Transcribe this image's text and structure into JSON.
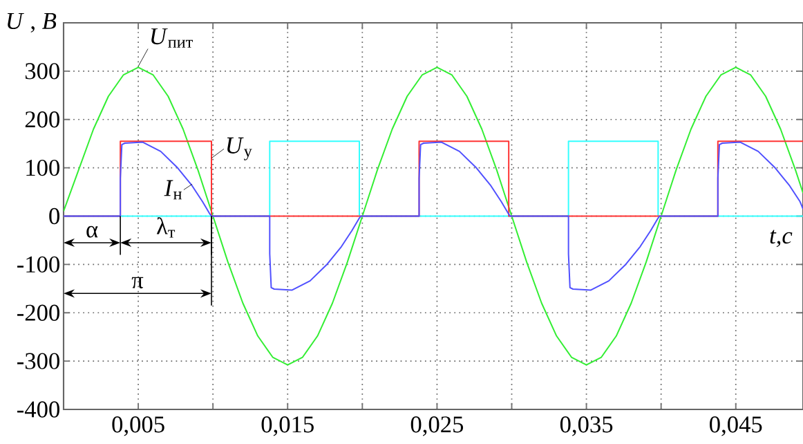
{
  "chart_data": {
    "type": "line",
    "xlabel": "t,c",
    "ylabel": "*U* , *B*",
    "xlim": [
      0,
      0.0495
    ],
    "ylim": [
      -400,
      400
    ],
    "xticks": [
      {
        "value": 0.005,
        "label": "0,005"
      },
      {
        "value": 0.01,
        "label": null
      },
      {
        "value": 0.015,
        "label": "0,015"
      },
      {
        "value": 0.02,
        "label": null
      },
      {
        "value": 0.025,
        "label": "0,025"
      },
      {
        "value": 0.03,
        "label": null
      },
      {
        "value": 0.035,
        "label": "0,035"
      },
      {
        "value": 0.04,
        "label": null
      },
      {
        "value": 0.045,
        "label": "0,045"
      }
    ],
    "yticks": [
      -400,
      -300,
      -200,
      -100,
      0,
      100,
      200,
      300
    ],
    "grid": true,
    "series": [
      {
        "color": "#33ee33",
        "x": [
          0,
          0.001,
          0.002,
          0.003,
          0.004,
          0.005,
          0.006,
          0.007,
          0.008,
          0.009,
          0.01,
          0.011,
          0.012,
          0.013,
          0.014,
          0.015,
          0.016,
          0.017,
          0.018,
          0.019,
          0.02,
          0.021,
          0.022,
          0.023,
          0.024,
          0.025,
          0.026,
          0.027,
          0.028,
          0.029,
          0.03,
          0.031,
          0.032,
          0.033,
          0.034,
          0.035,
          0.036,
          0.037,
          0.038,
          0.039,
          0.04,
          0.041,
          0.042,
          0.043,
          0.044,
          0.045,
          0.046,
          0.047,
          0.048,
          0.049,
          0.0495
        ],
        "values": [
          10,
          95,
          180,
          248,
          292,
          308,
          292,
          248,
          180,
          95,
          0,
          -95,
          -180,
          -248,
          -292,
          -308,
          -292,
          -248,
          -180,
          -95,
          0,
          95,
          180,
          248,
          292,
          308,
          292,
          248,
          180,
          95,
          0,
          -95,
          -180,
          -248,
          -292,
          -308,
          -292,
          -248,
          -180,
          -95,
          0,
          95,
          180,
          248,
          292,
          308,
          292,
          248,
          180,
          95,
          48
        ]
      },
      {
        "color": "#33ffff",
        "x": [
          0,
          0.0138,
          0.0138,
          0.0198,
          0.0198,
          0.0338,
          0.0338,
          0.0398,
          0.0398,
          0.0495
        ],
        "values": [
          0,
          0,
          155,
          155,
          0,
          0,
          155,
          155,
          0,
          0
        ]
      },
      {
        "color": "#ff3333",
        "x": [
          0,
          0.0038,
          0.0038,
          0.0099,
          0.0099,
          0.0238,
          0.0238,
          0.0298,
          0.0298,
          0.0438,
          0.0438,
          0.0495
        ],
        "values": [
          0,
          0,
          155,
          155,
          0,
          0,
          155,
          155,
          0,
          0,
          155,
          155
        ]
      },
      {
        "color": "#5050ff",
        "x": [
          0,
          0.0038,
          0.0038,
          0.0039,
          0.0041,
          0.0053,
          0.0065,
          0.0076,
          0.0086,
          0.0093,
          0.0098,
          0.0099,
          0.0138,
          0.0138,
          0.0139,
          0.0141,
          0.0153,
          0.0165,
          0.0176,
          0.0186,
          0.0193,
          0.0198,
          0.0199,
          0.0238,
          0.0238,
          0.0239,
          0.0241,
          0.0253,
          0.0265,
          0.0276,
          0.0286,
          0.0293,
          0.0298,
          0.0299,
          0.0338,
          0.0338,
          0.0339,
          0.0341,
          0.0353,
          0.0365,
          0.0376,
          0.0386,
          0.0393,
          0.0398,
          0.0399,
          0.0438,
          0.0438,
          0.0439,
          0.0441,
          0.0453,
          0.0465,
          0.0476,
          0.0486,
          0.0493,
          0.0495
        ],
        "values": [
          0,
          0,
          78,
          148,
          151,
          153,
          134,
          101,
          63,
          30,
          4,
          0,
          0,
          -78,
          -148,
          -151,
          -153,
          -134,
          -101,
          -63,
          -30,
          -4,
          0,
          0,
          78,
          148,
          151,
          153,
          134,
          101,
          63,
          30,
          4,
          0,
          0,
          -78,
          -148,
          -151,
          -153,
          -134,
          -101,
          -63,
          -30,
          -4,
          0,
          0,
          78,
          148,
          151,
          153,
          134,
          101,
          63,
          30,
          15
        ]
      }
    ],
    "annotations": [
      {
        "text": "*U*$_{пит}$",
        "x": 0.005,
        "y": 310
      },
      {
        "text": "*U*$_{у}$",
        "x": 0.0099,
        "y": 120
      },
      {
        "text": "*I*$_{н}$",
        "x": 0.0086,
        "y": 66
      },
      "α",
      "λ$_{т}$",
      "π"
    ]
  }
}
